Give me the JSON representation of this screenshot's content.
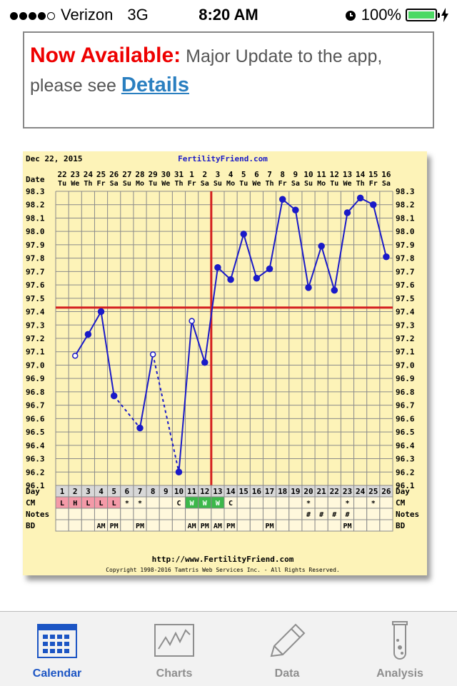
{
  "status_bar": {
    "carrier": "Verizon",
    "network": "3G",
    "time": "8:20 AM",
    "battery": "100%"
  },
  "banner": {
    "headline": "Now Available:",
    "text1": " Major Update to the app, please see ",
    "link": "Details"
  },
  "chart_data": {
    "type": "line",
    "header_date": "Dec 22, 2015",
    "header_site": "FertilityFriend.com",
    "date_label": "Date",
    "dates": [
      "22",
      "23",
      "24",
      "25",
      "26",
      "27",
      "28",
      "29",
      "30",
      "31",
      "1",
      "2",
      "3",
      "4",
      "5",
      "6",
      "7",
      "8",
      "9",
      "10",
      "11",
      "12",
      "13",
      "14",
      "15",
      "16"
    ],
    "weekdays": [
      "Tu",
      "We",
      "Th",
      "Fr",
      "Sa",
      "Su",
      "Mo",
      "Tu",
      "We",
      "Th",
      "Fr",
      "Sa",
      "Su",
      "Mo",
      "Tu",
      "We",
      "Th",
      "Fr",
      "Sa",
      "Su",
      "Mo",
      "Tu",
      "We",
      "Th",
      "Fr",
      "Sa"
    ],
    "y_ticks": [
      "98.3",
      "98.2",
      "98.1",
      "98.0",
      "97.9",
      "97.8",
      "97.7",
      "97.6",
      "97.5",
      "97.4",
      "97.3",
      "97.2",
      "97.1",
      "97.0",
      "96.9",
      "96.8",
      "96.7",
      "96.6",
      "96.5",
      "96.4",
      "96.3",
      "96.2",
      "96.1"
    ],
    "ylim": [
      96.1,
      98.3
    ],
    "temps": [
      null,
      97.07,
      97.23,
      97.4,
      96.77,
      null,
      96.53,
      97.08,
      null,
      96.2,
      97.33,
      97.02,
      97.73,
      97.64,
      97.98,
      97.65,
      97.72,
      98.24,
      98.16,
      97.58,
      97.89,
      97.56,
      98.14,
      98.25,
      98.2,
      97.81
    ],
    "open_points": [
      1,
      7,
      10
    ],
    "dotted_segments": [
      [
        4,
        6
      ],
      [
        7,
        9
      ]
    ],
    "coverline": 97.43,
    "ovulation_day": 12,
    "row_labels": {
      "day": "Day",
      "cm": "CM",
      "notes": "Notes",
      "bd": "BD"
    },
    "days": [
      "1",
      "2",
      "3",
      "4",
      "5",
      "6",
      "7",
      "8",
      "9",
      "10",
      "11",
      "12",
      "13",
      "14",
      "15",
      "16",
      "17",
      "18",
      "19",
      "20",
      "21",
      "22",
      "23",
      "24",
      "25",
      "26"
    ],
    "cm": [
      "L",
      "H",
      "L",
      "L",
      "L",
      "*",
      "*",
      "",
      "",
      "C",
      "W",
      "W",
      "W",
      "C",
      "",
      "",
      "",
      "",
      "",
      "*",
      "",
      "",
      "*",
      "",
      "*",
      ""
    ],
    "cm_colors": {
      "period": "#f49aa8",
      "fertile": "#3cb84a"
    },
    "notes": [
      "",
      "",
      "",
      "",
      "",
      "",
      "",
      "",
      "",
      "",
      "",
      "",
      "",
      "",
      "",
      "",
      "",
      "",
      "",
      "#",
      "#",
      "#",
      "#",
      "",
      "",
      ""
    ],
    "bd": [
      "",
      "",
      "",
      "AM",
      "PM",
      "",
      "PM",
      "",
      "",
      "",
      "AM",
      "PM",
      "AM",
      "PM",
      "",
      "",
      "PM",
      "",
      "",
      "",
      "",
      "",
      "PM",
      "",
      "",
      ""
    ],
    "footer_url": "http://www.FertilityFriend.com",
    "copyright": "Copyright 1998-2016 Tamtris Web Services Inc. - All Rights Reserved."
  },
  "tabs": [
    {
      "label": "Calendar",
      "icon": "calendar-icon",
      "active": true
    },
    {
      "label": "Charts",
      "icon": "chart-icon",
      "active": false
    },
    {
      "label": "Data",
      "icon": "pencil-icon",
      "active": false
    },
    {
      "label": "Analysis",
      "icon": "test-tube-icon",
      "active": false
    }
  ]
}
